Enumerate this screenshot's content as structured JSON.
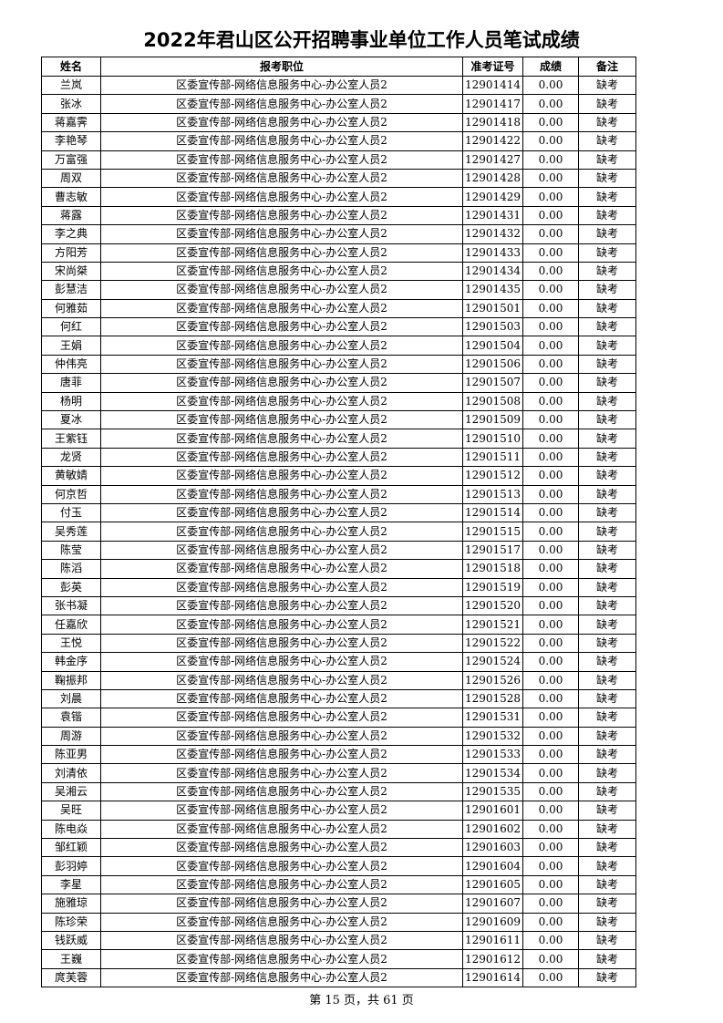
{
  "title": "2022年君山区公开招聘事业单位工作人员笔试成绩",
  "columns": [
    "姓名",
    "报考职位",
    "准考证号",
    "成绩",
    "备注"
  ],
  "rows": [
    [
      "兰岚",
      "区委宣传部-网络信息服务中心-办公室人员2",
      "12901414",
      "0.00",
      "缺考"
    ],
    [
      "张冰",
      "区委宣传部-网络信息服务中心-办公室人员2",
      "12901417",
      "0.00",
      "缺考"
    ],
    [
      "蒋嘉霁",
      "区委宣传部-网络信息服务中心-办公室人员2",
      "12901418",
      "0.00",
      "缺考"
    ],
    [
      "李艳琴",
      "区委宣传部-网络信息服务中心-办公室人员2",
      "12901422",
      "0.00",
      "缺考"
    ],
    [
      "万富强",
      "区委宣传部-网络信息服务中心-办公室人员2",
      "12901427",
      "0.00",
      "缺考"
    ],
    [
      "周双",
      "区委宣传部-网络信息服务中心-办公室人员2",
      "12901428",
      "0.00",
      "缺考"
    ],
    [
      "曹志敏",
      "区委宣传部-网络信息服务中心-办公室人员2",
      "12901429",
      "0.00",
      "缺考"
    ],
    [
      "蒋露",
      "区委宣传部-网络信息服务中心-办公室人员2",
      "12901431",
      "0.00",
      "缺考"
    ],
    [
      "李之典",
      "区委宣传部-网络信息服务中心-办公室人员2",
      "12901432",
      "0.00",
      "缺考"
    ],
    [
      "方阳芳",
      "区委宣传部-网络信息服务中心-办公室人员2",
      "12901433",
      "0.00",
      "缺考"
    ],
    [
      "宋尚桀",
      "区委宣传部-网络信息服务中心-办公室人员2",
      "12901434",
      "0.00",
      "缺考"
    ],
    [
      "彭慧洁",
      "区委宣传部-网络信息服务中心-办公室人员2",
      "12901435",
      "0.00",
      "缺考"
    ],
    [
      "何雅茹",
      "区委宣传部-网络信息服务中心-办公室人员2",
      "12901501",
      "0.00",
      "缺考"
    ],
    [
      "何红",
      "区委宣传部-网络信息服务中心-办公室人员2",
      "12901503",
      "0.00",
      "缺考"
    ],
    [
      "王娟",
      "区委宣传部-网络信息服务中心-办公室人员2",
      "12901504",
      "0.00",
      "缺考"
    ],
    [
      "仲伟亮",
      "区委宣传部-网络信息服务中心-办公室人员2",
      "12901506",
      "0.00",
      "缺考"
    ],
    [
      "唐菲",
      "区委宣传部-网络信息服务中心-办公室人员2",
      "12901507",
      "0.00",
      "缺考"
    ],
    [
      "杨明",
      "区委宣传部-网络信息服务中心-办公室人员2",
      "12901508",
      "0.00",
      "缺考"
    ],
    [
      "夏冰",
      "区委宣传部-网络信息服务中心-办公室人员2",
      "12901509",
      "0.00",
      "缺考"
    ],
    [
      "王紫钰",
      "区委宣传部-网络信息服务中心-办公室人员2",
      "12901510",
      "0.00",
      "缺考"
    ],
    [
      "龙贤",
      "区委宣传部-网络信息服务中心-办公室人员2",
      "12901511",
      "0.00",
      "缺考"
    ],
    [
      "黄敏婧",
      "区委宣传部-网络信息服务中心-办公室人员2",
      "12901512",
      "0.00",
      "缺考"
    ],
    [
      "何京哲",
      "区委宣传部-网络信息服务中心-办公室人员2",
      "12901513",
      "0.00",
      "缺考"
    ],
    [
      "付玉",
      "区委宣传部-网络信息服务中心-办公室人员2",
      "12901514",
      "0.00",
      "缺考"
    ],
    [
      "吴秀莲",
      "区委宣传部-网络信息服务中心-办公室人员2",
      "12901515",
      "0.00",
      "缺考"
    ],
    [
      "陈莹",
      "区委宣传部-网络信息服务中心-办公室人员2",
      "12901517",
      "0.00",
      "缺考"
    ],
    [
      "陈滔",
      "区委宣传部-网络信息服务中心-办公室人员2",
      "12901518",
      "0.00",
      "缺考"
    ],
    [
      "彭英",
      "区委宣传部-网络信息服务中心-办公室人员2",
      "12901519",
      "0.00",
      "缺考"
    ],
    [
      "张书凝",
      "区委宣传部-网络信息服务中心-办公室人员2",
      "12901520",
      "0.00",
      "缺考"
    ],
    [
      "任嘉欣",
      "区委宣传部-网络信息服务中心-办公室人员2",
      "12901521",
      "0.00",
      "缺考"
    ],
    [
      "王悦",
      "区委宣传部-网络信息服务中心-办公室人员2",
      "12901522",
      "0.00",
      "缺考"
    ],
    [
      "韩金序",
      "区委宣传部-网络信息服务中心-办公室人员2",
      "12901524",
      "0.00",
      "缺考"
    ],
    [
      "鞠振邦",
      "区委宣传部-网络信息服务中心-办公室人员2",
      "12901526",
      "0.00",
      "缺考"
    ],
    [
      "刘晨",
      "区委宣传部-网络信息服务中心-办公室人员2",
      "12901528",
      "0.00",
      "缺考"
    ],
    [
      "袁锴",
      "区委宣传部-网络信息服务中心-办公室人员2",
      "12901531",
      "0.00",
      "缺考"
    ],
    [
      "周游",
      "区委宣传部-网络信息服务中心-办公室人员2",
      "12901532",
      "0.00",
      "缺考"
    ],
    [
      "陈亚男",
      "区委宣传部-网络信息服务中心-办公室人员2",
      "12901533",
      "0.00",
      "缺考"
    ],
    [
      "刘清依",
      "区委宣传部-网络信息服务中心-办公室人员2",
      "12901534",
      "0.00",
      "缺考"
    ],
    [
      "吴湘云",
      "区委宣传部-网络信息服务中心-办公室人员2",
      "12901535",
      "0.00",
      "缺考"
    ],
    [
      "吴旺",
      "区委宣传部-网络信息服务中心-办公室人员2",
      "12901601",
      "0.00",
      "缺考"
    ],
    [
      "陈电焱",
      "区委宣传部-网络信息服务中心-办公室人员2",
      "12901602",
      "0.00",
      "缺考"
    ],
    [
      "邹红颖",
      "区委宣传部-网络信息服务中心-办公室人员2",
      "12901603",
      "0.00",
      "缺考"
    ],
    [
      "彭羽婷",
      "区委宣传部-网络信息服务中心-办公室人员2",
      "12901604",
      "0.00",
      "缺考"
    ],
    [
      "李星",
      "区委宣传部-网络信息服务中心-办公室人员2",
      "12901605",
      "0.00",
      "缺考"
    ],
    [
      "施雅琼",
      "区委宣传部-网络信息服务中心-办公室人员2",
      "12901607",
      "0.00",
      "缺考"
    ],
    [
      "陈珍荣",
      "区委宣传部-网络信息服务中心-办公室人员2",
      "12901609",
      "0.00",
      "缺考"
    ],
    [
      "钱跃威",
      "区委宣传部-网络信息服务中心-办公室人员2",
      "12901611",
      "0.00",
      "缺考"
    ],
    [
      "王巍",
      "区委宣传部-网络信息服务中心-办公室人员2",
      "12901612",
      "0.00",
      "缺考"
    ],
    [
      "庹芙蓉",
      "区委宣传部-网络信息服务中心-办公室人员2",
      "12901614",
      "0.00",
      "缺考"
    ]
  ],
  "footer": "第 15 页，共 61 页"
}
